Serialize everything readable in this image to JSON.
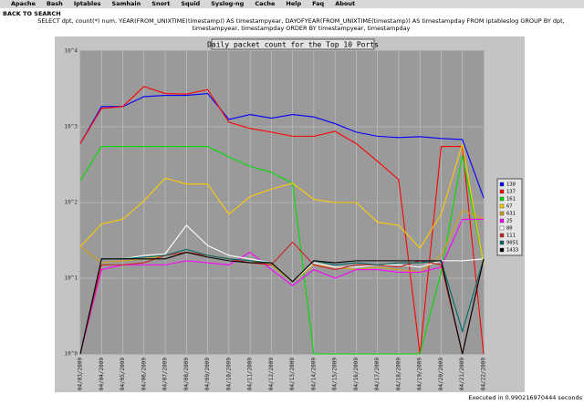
{
  "nav": [
    "Apache",
    "Bash",
    "Iptables",
    "Samhain",
    "Snort",
    "Squid",
    "Syslog-ng",
    "Cache",
    "Help",
    "Faq",
    "About"
  ],
  "back": "BACK TO SEARCH",
  "query": "SELECT dpt, count(*) num, YEAR(FROM_UNIXTIME(timestamp)) AS timestampyear, DAYOFYEAR(FROM_UNIXTIME(timestamp)) AS timestampday FROM iptableslog GROUP BY dpt, timestampyear, timestampday ORDER BY timestampyear, timestampday",
  "footer": "Executed in 0.990216970444 seconds",
  "chart_data": {
    "type": "line",
    "title": "Daily packet count for the Top 10 Ports",
    "categories": [
      "04/03/2009",
      "04/04/2009",
      "04/05/2009",
      "04/06/2009",
      "04/07/2009",
      "04/08/2009",
      "04/09/2009",
      "04/10/2009",
      "04/11/2009",
      "04/12/2009",
      "04/13/2009",
      "04/14/2009",
      "04/15/2009",
      "04/16/2009",
      "04/17/2009",
      "04/18/2009",
      "04/19/2009",
      "04/20/2009",
      "04/21/2009",
      "04/22/2009"
    ],
    "series": [
      {
        "name": "138",
        "color": "#0000ff",
        "values": [
          600,
          1850,
          1850,
          2500,
          2600,
          2600,
          2750,
          1250,
          1450,
          1300,
          1450,
          1350,
          1100,
          850,
          750,
          720,
          740,
          700,
          680,
          115
        ]
      },
      {
        "name": "137",
        "color": "#ff0000",
        "values": [
          600,
          1750,
          1850,
          3400,
          2750,
          2700,
          3100,
          1150,
          950,
          850,
          750,
          750,
          870,
          600,
          350,
          200,
          1,
          550,
          550,
          1
        ]
      },
      {
        "name": "161",
        "color": "#00dd00",
        "values": [
          195,
          550,
          550,
          550,
          550,
          550,
          550,
          400,
          300,
          250,
          180,
          1,
          1,
          1,
          1,
          1,
          1,
          12,
          420,
          15
        ]
      },
      {
        "name": "67",
        "color": "#ffcc00",
        "values": [
          26,
          52,
          60,
          105,
          210,
          175,
          175,
          70,
          120,
          150,
          180,
          110,
          100,
          100,
          55,
          50,
          25,
          70,
          590,
          15
        ]
      },
      {
        "name": "631",
        "color": "#d4a017",
        "values": [
          26,
          16,
          17,
          18,
          20,
          22,
          20,
          18,
          17,
          15,
          9,
          15,
          14,
          13,
          14,
          13,
          12,
          20,
          80,
          60
        ]
      },
      {
        "name": "25",
        "color": "#ff00ff",
        "values": [
          1,
          13,
          15,
          15,
          15,
          17,
          16,
          15,
          22,
          13,
          8,
          13,
          10,
          13,
          13,
          12,
          12,
          14,
          60,
          60
        ]
      },
      {
        "name": "80",
        "color": "#ffffff",
        "values": [
          1,
          18,
          18,
          20,
          21,
          50,
          27,
          20,
          18,
          16,
          9,
          16,
          14,
          14,
          15,
          15,
          14,
          17,
          17,
          18
        ]
      },
      {
        "name": "111",
        "color": "#cc2222",
        "values": [
          1,
          15,
          15,
          16,
          20,
          22,
          20,
          18,
          16,
          15,
          30,
          15,
          13,
          15,
          15,
          14,
          17,
          15,
          1,
          18
        ]
      },
      {
        "name": "9051",
        "color": "#006a6a",
        "values": [
          1,
          18,
          18,
          19,
          20,
          24,
          20,
          18,
          17,
          16,
          9,
          17,
          15,
          16,
          15,
          16,
          16,
          17,
          2,
          18
        ]
      },
      {
        "name": "1433",
        "color": "#000000",
        "values": [
          1,
          18,
          18,
          18,
          18,
          22,
          19,
          17,
          16,
          16,
          9,
          17,
          16,
          17,
          17,
          17,
          17,
          17,
          1,
          18
        ]
      }
    ],
    "ylim": [
      1,
      10000
    ],
    "yticks": [
      {
        "value": 1,
        "label": "10^0"
      },
      {
        "value": 10,
        "label": "10^1"
      },
      {
        "value": 100,
        "label": "10^2"
      },
      {
        "value": 1000,
        "label": "10^3"
      },
      {
        "value": 10000,
        "label": "10^4"
      }
    ],
    "log_scale": true,
    "grid": true,
    "legend": "right"
  }
}
